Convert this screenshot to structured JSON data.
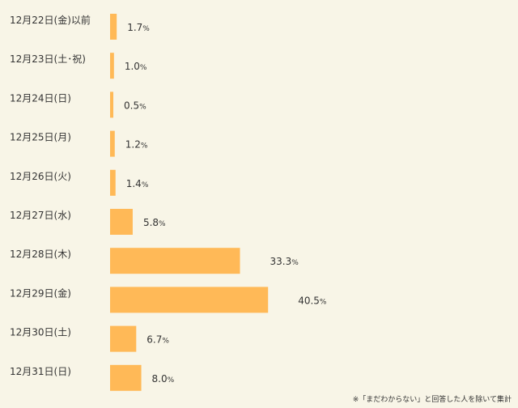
{
  "chart_data": {
    "type": "bar",
    "orientation": "horizontal",
    "categories": [
      "12月22日(金)以前",
      "12月23日(土･祝)",
      "12月24日(日)",
      "12月25日(月)",
      "12月26日(火)",
      "12月27日(水)",
      "12月28日(木)",
      "12月29日(金)",
      "12月30日(土)",
      "12月31日(日)"
    ],
    "values": [
      1.7,
      1.0,
      0.5,
      1.2,
      1.4,
      5.8,
      33.3,
      40.5,
      6.7,
      8.0
    ],
    "value_labels": [
      "1.7",
      "1.0",
      "0.5",
      "1.2",
      "1.4",
      "5.8",
      "33.3",
      "40.5",
      "6.7",
      "8.0"
    ],
    "unit": "%",
    "bar_color": "#ffb957",
    "grid": false
  },
  "footnote": "※「まだわからない」と回答した人を除いて集計"
}
